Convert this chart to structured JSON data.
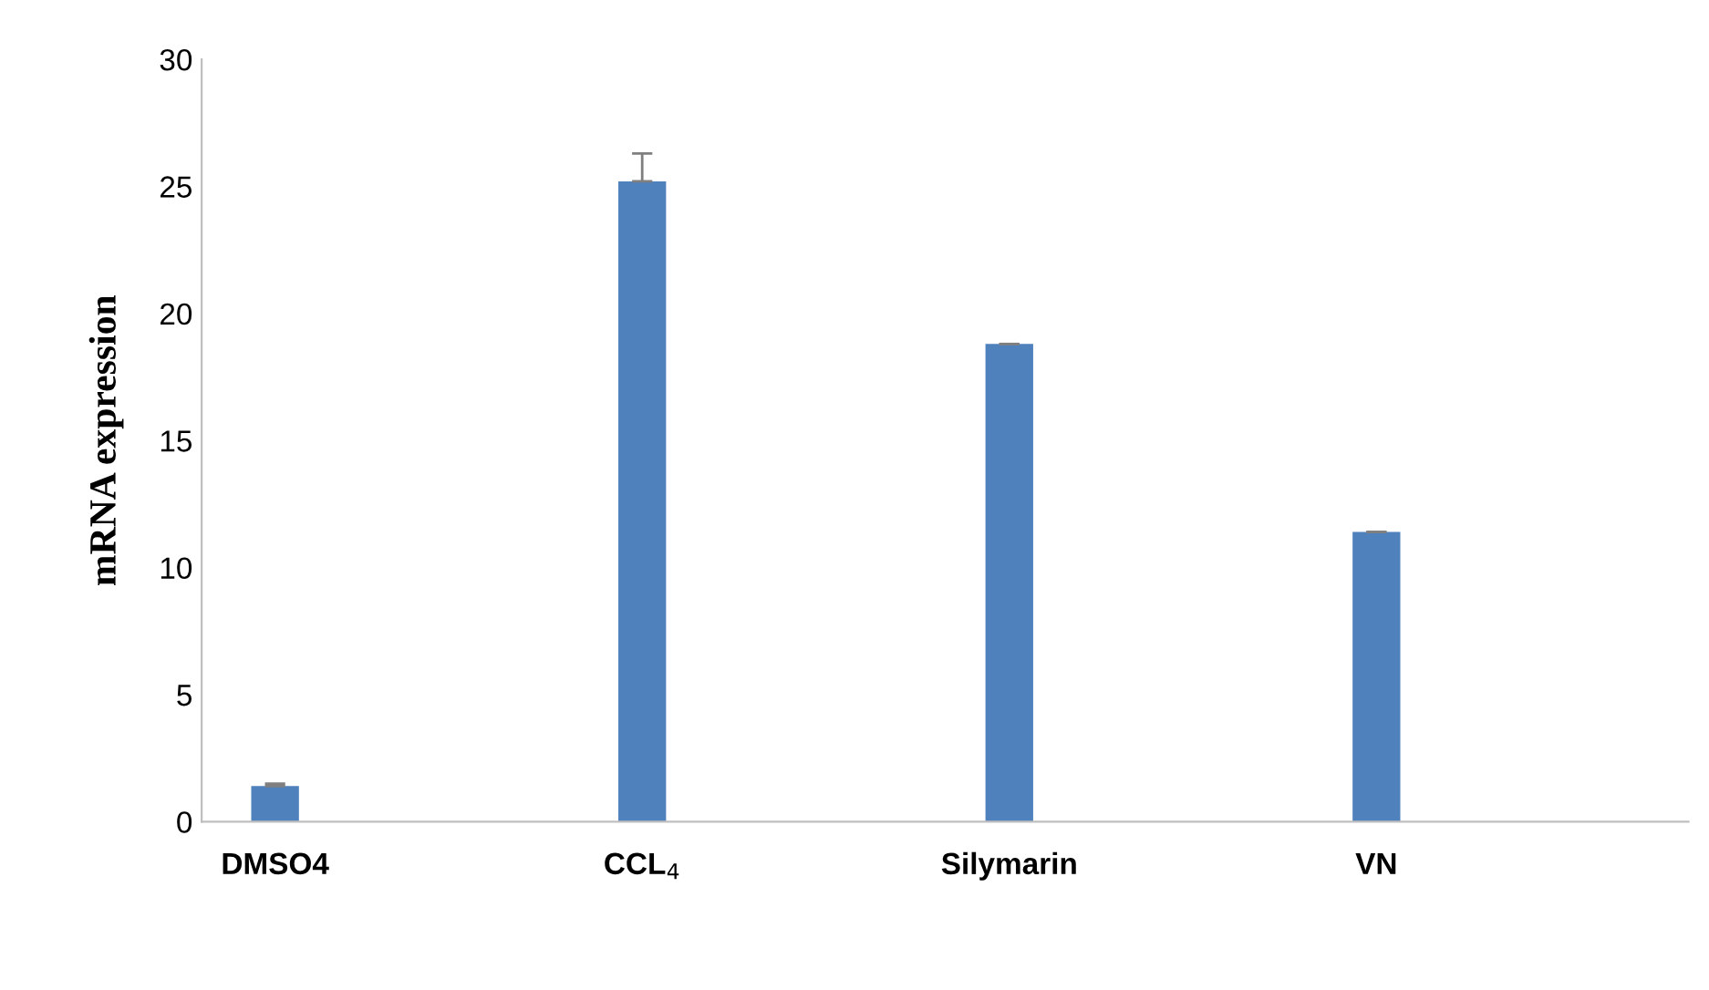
{
  "chart_data": {
    "type": "bar",
    "ylabel": "mRNA expression",
    "categories": [
      "DMSO4",
      "CCL$_{4}$",
      "Silymarin",
      "VN"
    ],
    "values": [
      1.4,
      25.2,
      18.8,
      11.4
    ],
    "errors": [
      0.1,
      1.1,
      null,
      null
    ],
    "color": "#4f81bd",
    "ylim": [
      0,
      30
    ],
    "yticks": [
      0,
      5,
      10,
      15,
      20,
      25,
      30
    ],
    "grid": false
  }
}
